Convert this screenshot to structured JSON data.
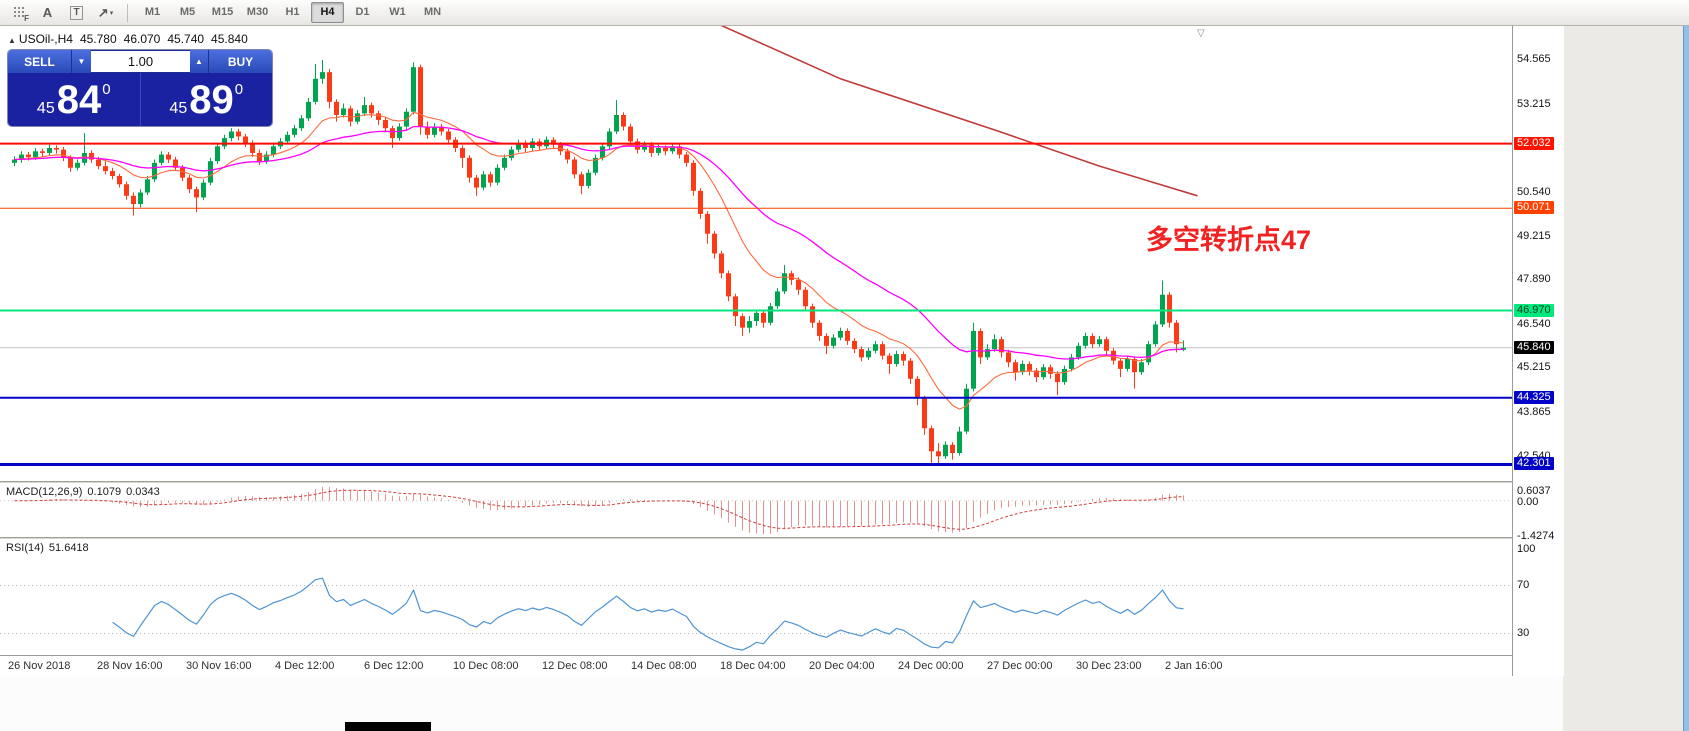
{
  "icons": {
    "chart": "▲",
    "dropdown_caret": "▼",
    "spinner_up": "▲",
    "shift_marker": "▽",
    "tool_caret": "▾"
  },
  "toolbar": {
    "tools": [
      {
        "name": "scale-fix",
        "glyph": "F"
      },
      {
        "name": "text-label",
        "glyph": "A"
      },
      {
        "name": "text-tool",
        "glyph": "T"
      },
      {
        "name": "arrow-objects",
        "glyph": "↗",
        "caret": true
      }
    ],
    "timeframes": [
      "M1",
      "M5",
      "M15",
      "M30",
      "H1",
      "H4",
      "D1",
      "W1",
      "MN"
    ],
    "active_timeframe": "H4"
  },
  "chart_header": {
    "symbol": "USOil-,H4",
    "open": "45.780",
    "high": "46.070",
    "low": "45.740",
    "close": "45.840"
  },
  "one_click": {
    "sell_label": "SELL",
    "buy_label": "BUY",
    "volume": "1.00",
    "sell_price": {
      "prefix": "45",
      "big": "84",
      "sup": "0"
    },
    "buy_price": {
      "prefix": "45",
      "big": "89",
      "sup": "0"
    }
  },
  "annotation": {
    "text": "多空转折点47",
    "color": "#f22222"
  },
  "price_scale": {
    "labels": [
      {
        "text": "54.565",
        "price": 54.565
      },
      {
        "text": "53.215",
        "price": 53.215
      },
      {
        "text": "52.032",
        "price": 52.032,
        "bg": "#ff1200",
        "fg": "#ffffff"
      },
      {
        "text": "50.540",
        "price": 50.54
      },
      {
        "text": "50.071",
        "price": 50.071,
        "bg": "#ff4000",
        "fg": "#ffffff"
      },
      {
        "text": "49.215",
        "price": 49.215
      },
      {
        "text": "47.890",
        "price": 47.89
      },
      {
        "text": "46.970",
        "price": 46.97,
        "bg": "#00e97e",
        "fg": "#00381d"
      },
      {
        "text": "46.540",
        "price": 46.54
      },
      {
        "text": "45.840",
        "price": 45.84,
        "bg": "#000000",
        "fg": "#ffffff"
      },
      {
        "text": "45.215",
        "price": 45.215
      },
      {
        "text": "44.325",
        "price": 44.325,
        "bg": "#0202c8",
        "fg": "#ffffff"
      },
      {
        "text": "43.865",
        "price": 43.865
      },
      {
        "text": "42.540",
        "price": 42.54
      },
      {
        "text": "42.301",
        "price": 42.301,
        "bg": "#0202c8",
        "fg": "#ffffff"
      }
    ]
  },
  "hlines": [
    {
      "price": 45.84,
      "color": "#c2c2c2",
      "width": 1,
      "under": true
    },
    {
      "price": 52.032,
      "color": "#ff0a00",
      "width": 2
    },
    {
      "price": 50.071,
      "color": "#ff4000",
      "width": 1
    },
    {
      "price": 46.97,
      "color": "#00e67c",
      "width": 2
    },
    {
      "price": 44.325,
      "color": "#0202c8",
      "width": 2
    },
    {
      "price": 42.301,
      "color": "#0202c8",
      "width": 3
    }
  ],
  "macd_panel": {
    "label": "MACD(12,26,9)",
    "value_main": "0.1079",
    "value_signal": "0.0343",
    "params": {
      "fast": 12,
      "slow": 26,
      "signal": 9
    },
    "colors": {
      "histogram": "#e89090",
      "signal": "#d23f3f"
    },
    "scale": [
      {
        "text": "0.6037",
        "v": 0.6037
      },
      {
        "text": "0.00",
        "v": 0
      },
      {
        "text": "-1.4274",
        "v": -1.4274
      }
    ]
  },
  "rsi_panel": {
    "label": "RSI(14)",
    "value": "51.6418",
    "period": 14,
    "color": "#4f94d4",
    "levels": [
      70,
      30
    ],
    "scale": [
      {
        "text": "100",
        "v": 100
      },
      {
        "text": "70",
        "v": 70
      },
      {
        "text": "30",
        "v": 30
      }
    ]
  },
  "time_axis": {
    "labels": [
      "26 Nov 2018",
      "28 Nov 16:00",
      "30 Nov 16:00",
      "4 Dec 12:00",
      "6 Dec 12:00",
      "10 Dec 08:00",
      "12 Dec 08:00",
      "14 Dec 08:00",
      "18 Dec 04:00",
      "20 Dec 04:00",
      "24 Dec 00:00",
      "27 Dec 00:00",
      "30 Dec 23:00",
      "2 Jan 16:00"
    ]
  },
  "chart_data": {
    "type": "candlestick",
    "symbol": "USOil-",
    "timeframe": "H4",
    "current": {
      "open": 45.78,
      "high": 46.07,
      "low": 45.74,
      "close": 45.84
    },
    "price_range": [
      41.8,
      55.6
    ],
    "up_color": "#00a44e",
    "down_color": "#fd3a17",
    "overlays": {
      "ma_fast": {
        "period": 13,
        "color": "#ff6a3d"
      },
      "ma_slow": {
        "period": 34,
        "color": "#ff00ff"
      },
      "trend_line": {
        "color": "#c23b3b",
        "points": [
          [
            98,
            55.9
          ],
          [
            118,
            54.0
          ],
          [
            140,
            52.45
          ],
          [
            155,
            51.35
          ],
          [
            169,
            50.45
          ]
        ]
      }
    },
    "candles": [
      [
        51.45,
        51.65,
        51.35,
        51.55
      ],
      [
        51.55,
        51.8,
        51.45,
        51.7
      ],
      [
        51.7,
        51.78,
        51.52,
        51.62
      ],
      [
        51.62,
        51.9,
        51.54,
        51.8
      ],
      [
        51.8,
        51.88,
        51.63,
        51.75
      ],
      [
        51.75,
        52.0,
        51.67,
        51.9
      ],
      [
        51.9,
        51.98,
        51.73,
        51.85
      ],
      [
        51.85,
        51.93,
        51.5,
        51.6
      ],
      [
        51.6,
        51.68,
        51.18,
        51.3
      ],
      [
        51.3,
        51.55,
        51.22,
        51.45
      ],
      [
        51.45,
        52.35,
        51.37,
        51.75
      ],
      [
        51.75,
        51.83,
        51.45,
        51.55
      ],
      [
        51.55,
        51.63,
        51.25,
        51.35
      ],
      [
        51.35,
        51.5,
        51.1,
        51.2
      ],
      [
        51.2,
        51.3,
        50.95,
        51.05
      ],
      [
        51.05,
        51.12,
        50.7,
        50.8
      ],
      [
        50.8,
        50.88,
        50.33,
        50.45
      ],
      [
        50.45,
        50.55,
        49.85,
        50.2
      ],
      [
        50.2,
        50.65,
        50.1,
        50.55
      ],
      [
        50.55,
        51.05,
        50.47,
        50.95
      ],
      [
        50.95,
        51.55,
        50.87,
        51.45
      ],
      [
        51.45,
        51.8,
        51.37,
        51.7
      ],
      [
        51.7,
        51.78,
        51.45,
        51.55
      ],
      [
        51.55,
        51.63,
        51.2,
        51.3
      ],
      [
        51.3,
        51.38,
        50.9,
        51.0
      ],
      [
        51.0,
        51.08,
        50.53,
        50.65
      ],
      [
        50.65,
        50.73,
        49.95,
        50.4
      ],
      [
        50.4,
        50.95,
        50.32,
        50.85
      ],
      [
        50.85,
        51.6,
        50.77,
        51.5
      ],
      [
        51.5,
        52.05,
        51.42,
        51.95
      ],
      [
        51.95,
        52.3,
        51.87,
        52.2
      ],
      [
        52.2,
        52.5,
        52.1,
        52.4
      ],
      [
        52.4,
        52.48,
        52.13,
        52.25
      ],
      [
        52.25,
        52.33,
        51.93,
        52.05
      ],
      [
        52.05,
        52.13,
        51.63,
        51.75
      ],
      [
        51.75,
        51.85,
        51.38,
        51.5
      ],
      [
        51.5,
        51.8,
        51.42,
        51.7
      ],
      [
        51.7,
        52.05,
        51.62,
        51.95
      ],
      [
        51.95,
        52.2,
        51.87,
        52.1
      ],
      [
        52.1,
        52.4,
        52.02,
        52.3
      ],
      [
        52.3,
        52.6,
        52.22,
        52.5
      ],
      [
        52.5,
        52.9,
        52.42,
        52.8
      ],
      [
        52.8,
        53.42,
        52.72,
        53.3
      ],
      [
        53.3,
        54.45,
        53.22,
        54.0
      ],
      [
        54.0,
        54.57,
        53.85,
        54.2
      ],
      [
        54.2,
        54.3,
        53.1,
        53.3
      ],
      [
        53.3,
        53.38,
        52.7,
        52.9
      ],
      [
        52.9,
        53.25,
        52.82,
        53.1
      ],
      [
        53.1,
        53.18,
        52.55,
        52.7
      ],
      [
        52.7,
        53.05,
        52.62,
        52.95
      ],
      [
        52.95,
        53.45,
        52.87,
        53.2
      ],
      [
        53.2,
        53.28,
        52.83,
        52.95
      ],
      [
        52.95,
        53.03,
        52.6,
        52.75
      ],
      [
        52.75,
        52.83,
        52.38,
        52.5
      ],
      [
        52.5,
        52.58,
        51.9,
        52.2
      ],
      [
        52.2,
        52.65,
        52.12,
        52.55
      ],
      [
        52.55,
        53.1,
        52.47,
        53.0
      ],
      [
        53.0,
        54.5,
        52.92,
        54.35
      ],
      [
        54.35,
        54.43,
        52.3,
        52.55
      ],
      [
        52.55,
        52.7,
        52.18,
        52.3
      ],
      [
        52.3,
        52.65,
        52.22,
        52.55
      ],
      [
        52.55,
        52.63,
        52.28,
        52.4
      ],
      [
        52.4,
        52.48,
        52.03,
        52.15
      ],
      [
        52.15,
        52.23,
        51.78,
        51.9
      ],
      [
        51.9,
        51.98,
        51.3,
        51.6
      ],
      [
        51.6,
        51.68,
        50.85,
        51.0
      ],
      [
        51.0,
        51.08,
        50.45,
        50.7
      ],
      [
        50.7,
        51.2,
        50.62,
        51.1
      ],
      [
        51.1,
        51.18,
        50.73,
        50.85
      ],
      [
        50.85,
        51.4,
        50.77,
        51.3
      ],
      [
        51.3,
        51.7,
        51.22,
        51.6
      ],
      [
        51.6,
        51.95,
        51.52,
        51.85
      ],
      [
        51.85,
        52.15,
        51.77,
        52.05
      ],
      [
        52.05,
        52.13,
        51.78,
        51.9
      ],
      [
        51.9,
        52.2,
        51.82,
        52.1
      ],
      [
        52.1,
        52.18,
        51.83,
        51.95
      ],
      [
        51.95,
        52.25,
        51.87,
        52.15
      ],
      [
        52.15,
        52.23,
        51.88,
        52.0
      ],
      [
        52.0,
        52.08,
        51.68,
        51.8
      ],
      [
        51.8,
        51.88,
        51.43,
        51.55
      ],
      [
        51.55,
        51.63,
        50.98,
        51.1
      ],
      [
        51.1,
        51.18,
        50.5,
        50.75
      ],
      [
        50.75,
        51.25,
        50.67,
        51.15
      ],
      [
        51.15,
        51.7,
        51.07,
        51.6
      ],
      [
        51.6,
        52.05,
        51.52,
        51.95
      ],
      [
        51.95,
        52.5,
        51.87,
        52.4
      ],
      [
        52.4,
        53.35,
        52.32,
        52.9
      ],
      [
        52.9,
        52.98,
        52.43,
        52.55
      ],
      [
        52.55,
        52.63,
        51.98,
        52.1
      ],
      [
        52.1,
        52.18,
        51.73,
        51.85
      ],
      [
        51.85,
        52.1,
        51.77,
        52.0
      ],
      [
        52.0,
        52.08,
        51.63,
        51.75
      ],
      [
        51.75,
        52.0,
        51.67,
        51.9
      ],
      [
        51.9,
        51.98,
        51.68,
        51.8
      ],
      [
        51.8,
        52.05,
        51.72,
        51.95
      ],
      [
        51.95,
        52.03,
        51.58,
        51.7
      ],
      [
        51.7,
        51.78,
        51.33,
        51.45
      ],
      [
        51.45,
        51.53,
        50.45,
        50.6
      ],
      [
        50.6,
        50.68,
        49.75,
        49.9
      ],
      [
        49.9,
        49.98,
        49.0,
        49.3
      ],
      [
        49.3,
        49.38,
        48.55,
        48.7
      ],
      [
        48.7,
        48.78,
        47.95,
        48.1
      ],
      [
        48.1,
        48.18,
        47.25,
        47.4
      ],
      [
        47.4,
        47.48,
        46.5,
        46.8
      ],
      [
        46.8,
        46.88,
        46.2,
        46.45
      ],
      [
        46.45,
        46.8,
        46.3,
        46.65
      ],
      [
        46.65,
        47.0,
        46.5,
        46.9
      ],
      [
        46.9,
        46.98,
        46.45,
        46.6
      ],
      [
        46.6,
        47.2,
        46.52,
        47.1
      ],
      [
        47.1,
        47.65,
        47.02,
        47.55
      ],
      [
        47.55,
        48.35,
        47.47,
        48.1
      ],
      [
        48.1,
        48.18,
        47.75,
        47.9
      ],
      [
        47.9,
        47.98,
        47.45,
        47.6
      ],
      [
        47.6,
        47.68,
        46.95,
        47.1
      ],
      [
        47.1,
        47.18,
        46.45,
        46.6
      ],
      [
        46.6,
        46.68,
        46.05,
        46.2
      ],
      [
        46.2,
        46.28,
        45.65,
        45.9
      ],
      [
        45.9,
        46.25,
        45.82,
        46.15
      ],
      [
        46.15,
        46.45,
        46.07,
        46.35
      ],
      [
        46.35,
        46.43,
        45.93,
        46.05
      ],
      [
        46.05,
        46.13,
        45.68,
        45.8
      ],
      [
        45.8,
        45.88,
        45.43,
        45.55
      ],
      [
        45.55,
        45.85,
        45.47,
        45.75
      ],
      [
        45.75,
        46.05,
        45.67,
        45.95
      ],
      [
        45.95,
        46.03,
        45.48,
        45.6
      ],
      [
        45.6,
        45.68,
        45.05,
        45.35
      ],
      [
        45.35,
        45.75,
        45.27,
        45.65
      ],
      [
        45.65,
        45.73,
        45.3,
        45.45
      ],
      [
        45.45,
        45.53,
        44.75,
        44.9
      ],
      [
        44.9,
        44.98,
        44.1,
        44.3
      ],
      [
        44.3,
        44.38,
        43.2,
        43.4
      ],
      [
        43.4,
        43.48,
        42.35,
        42.7
      ],
      [
        42.7,
        42.95,
        42.3,
        42.55
      ],
      [
        42.55,
        43.0,
        42.47,
        42.9
      ],
      [
        42.9,
        42.98,
        42.45,
        42.65
      ],
      [
        42.65,
        43.45,
        42.57,
        43.3
      ],
      [
        43.3,
        44.75,
        43.22,
        44.6
      ],
      [
        44.6,
        46.6,
        44.52,
        46.35
      ],
      [
        46.35,
        46.43,
        45.35,
        45.55
      ],
      [
        45.55,
        45.95,
        45.47,
        45.8
      ],
      [
        45.8,
        46.25,
        45.72,
        46.1
      ],
      [
        46.1,
        46.18,
        45.55,
        45.7
      ],
      [
        45.7,
        45.78,
        45.25,
        45.4
      ],
      [
        45.4,
        45.48,
        44.85,
        45.1
      ],
      [
        45.1,
        45.45,
        45.02,
        45.35
      ],
      [
        45.35,
        45.43,
        45.0,
        45.15
      ],
      [
        45.15,
        45.23,
        44.8,
        44.95
      ],
      [
        44.95,
        45.35,
        44.87,
        45.25
      ],
      [
        45.25,
        45.33,
        44.9,
        45.05
      ],
      [
        45.05,
        45.13,
        44.4,
        44.8
      ],
      [
        44.8,
        45.3,
        44.72,
        45.2
      ],
      [
        45.2,
        45.65,
        45.12,
        45.55
      ],
      [
        45.55,
        46.0,
        45.47,
        45.9
      ],
      [
        45.9,
        46.3,
        45.82,
        46.2
      ],
      [
        46.2,
        46.28,
        45.83,
        45.95
      ],
      [
        45.95,
        46.2,
        45.87,
        46.1
      ],
      [
        46.1,
        46.18,
        45.63,
        45.75
      ],
      [
        45.75,
        45.83,
        45.33,
        45.45
      ],
      [
        45.45,
        45.53,
        44.95,
        45.2
      ],
      [
        45.2,
        45.6,
        45.12,
        45.5
      ],
      [
        45.5,
        45.58,
        44.6,
        45.1
      ],
      [
        45.1,
        45.5,
        45.02,
        45.4
      ],
      [
        45.4,
        46.05,
        45.32,
        45.95
      ],
      [
        45.95,
        46.65,
        45.87,
        46.55
      ],
      [
        46.55,
        47.88,
        46.47,
        47.45
      ],
      [
        47.45,
        47.53,
        46.45,
        46.6
      ],
      [
        46.6,
        46.68,
        45.7,
        45.95
      ],
      [
        45.78,
        46.07,
        45.74,
        45.84
      ]
    ]
  }
}
